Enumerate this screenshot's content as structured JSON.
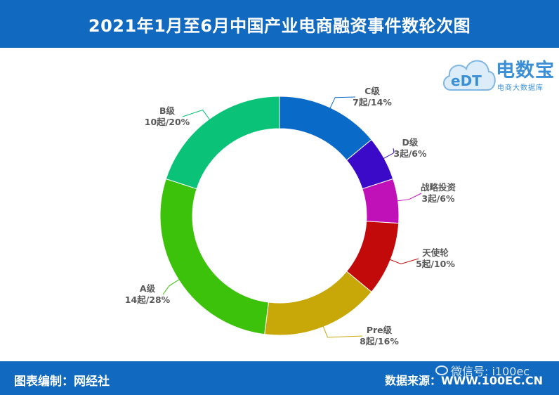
{
  "header": {
    "title": "2021年1月至6月中国产业电商融资事件数轮次图"
  },
  "footer": {
    "left": "图表编制：网经社",
    "right": "数据来源：WWW.100EC.CN"
  },
  "watermark": {
    "text": "微信号: i100ec"
  },
  "logo": {
    "mark": "eDT",
    "name": "电数宝",
    "sub": "电商大数据库"
  },
  "chart_data": {
    "type": "pie",
    "style": "donut",
    "title": "2021年1月至6月中国产业电商融资事件数轮次图",
    "slices": [
      {
        "name": "C级",
        "value": 7,
        "label": "7起/14%",
        "color": "#0a6ac8"
      },
      {
        "name": "D级",
        "value": 3,
        "label": "3起/6%",
        "color": "#3a0ac8"
      },
      {
        "name": "战略投资",
        "value": 3,
        "label": "3起/6%",
        "color": "#c010b8"
      },
      {
        "name": "天使轮",
        "value": 5,
        "label": "5起/10%",
        "color": "#c20a0a"
      },
      {
        "name": "Pre级",
        "value": 8,
        "label": "8起/16%",
        "color": "#c8a808"
      },
      {
        "name": "A级",
        "value": 14,
        "label": "14起/28%",
        "color": "#3cc20a"
      },
      {
        "name": "B级",
        "value": 10,
        "label": "10起/20%",
        "color": "#0ac278"
      }
    ]
  }
}
